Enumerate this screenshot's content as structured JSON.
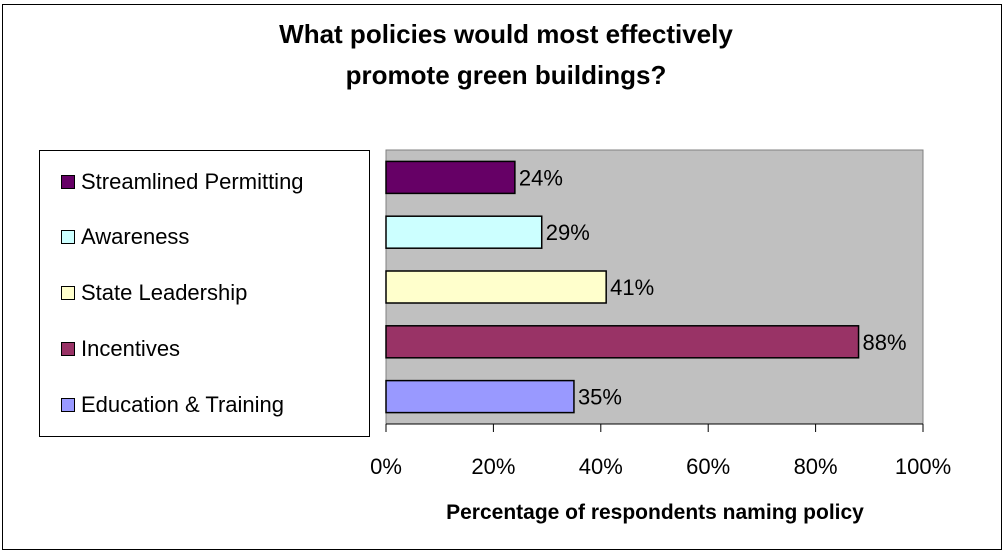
{
  "chart_data": {
    "type": "bar",
    "orientation": "horizontal",
    "title_lines": [
      "What policies would most effectively",
      "promote green buildings?"
    ],
    "xlabel": "Percentage of respondents naming policy",
    "ylabel": "",
    "xlim": [
      0,
      100
    ],
    "x_ticks": [
      "0%",
      "20%",
      "40%",
      "60%",
      "80%",
      "100%"
    ],
    "grid": false,
    "plot_background": "#c0c0c0",
    "legend_position": "left",
    "categories": [
      "Streamlined Permitting",
      "Awareness",
      "State Leadership",
      "Incentives",
      "Education & Training"
    ],
    "values": [
      24,
      29,
      41,
      88,
      35
    ],
    "value_labels": [
      "24%",
      "29%",
      "41%",
      "88%",
      "35%"
    ],
    "colors": [
      "#660066",
      "#ccffff",
      "#ffffcc",
      "#993366",
      "#9999ff"
    ]
  }
}
